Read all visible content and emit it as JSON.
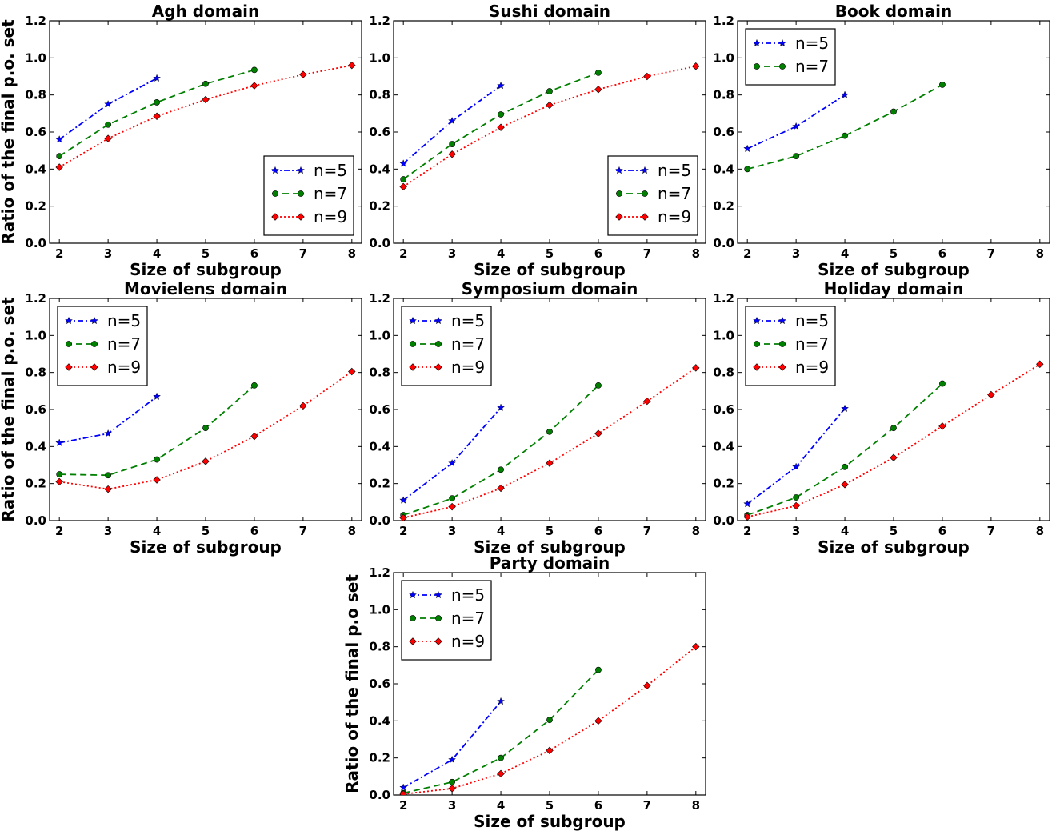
{
  "figure": {
    "xlabel": "Size of subgroup",
    "ylabel_default": "Ratio of the final p.o. set"
  },
  "series_styles": {
    "n=5": {
      "color": "#0000ff",
      "dash": "7,3,2,3",
      "marker": "star"
    },
    "n=7": {
      "color": "#007f00",
      "dash": "8,5",
      "marker": "circle"
    },
    "n=9": {
      "color": "#ff0000",
      "dash": "2,3",
      "marker": "diamond"
    }
  },
  "chart_data": [
    {
      "type": "line",
      "title": "Agh domain",
      "xlabel": "Size of subgroup",
      "ylabel": "Ratio of the final p.o. set",
      "xlim": [
        1.8,
        8.2
      ],
      "ylim": [
        0.0,
        1.2
      ],
      "xticks": [
        "2",
        "3",
        "4",
        "5",
        "6",
        "7",
        "8"
      ],
      "yticks": [
        "0.0",
        "0.2",
        "0.4",
        "0.6",
        "0.8",
        "1.0",
        "1.2"
      ],
      "legend": "lower-right",
      "series": [
        {
          "name": "n=5",
          "x": [
            2,
            3,
            4
          ],
          "y": [
            0.56,
            0.75,
            0.89
          ]
        },
        {
          "name": "n=7",
          "x": [
            2,
            3,
            4,
            5,
            6
          ],
          "y": [
            0.47,
            0.64,
            0.76,
            0.86,
            0.935
          ]
        },
        {
          "name": "n=9",
          "x": [
            2,
            3,
            4,
            5,
            6,
            7,
            8
          ],
          "y": [
            0.41,
            0.565,
            0.685,
            0.775,
            0.85,
            0.91,
            0.96
          ]
        }
      ]
    },
    {
      "type": "line",
      "title": "Sushi domain",
      "xlabel": "Size of subgroup",
      "ylabel": "",
      "xlim": [
        1.8,
        8.2
      ],
      "ylim": [
        0.0,
        1.2
      ],
      "xticks": [
        "2",
        "3",
        "4",
        "5",
        "6",
        "7",
        "8"
      ],
      "yticks": [
        "0.0",
        "0.2",
        "0.4",
        "0.6",
        "0.8",
        "1.0",
        "1.2"
      ],
      "legend": "lower-right",
      "series": [
        {
          "name": "n=5",
          "x": [
            2,
            3,
            4
          ],
          "y": [
            0.43,
            0.66,
            0.85
          ]
        },
        {
          "name": "n=7",
          "x": [
            2,
            3,
            4,
            5,
            6
          ],
          "y": [
            0.345,
            0.535,
            0.695,
            0.82,
            0.92
          ]
        },
        {
          "name": "n=9",
          "x": [
            2,
            3,
            4,
            5,
            6,
            7,
            8
          ],
          "y": [
            0.305,
            0.48,
            0.625,
            0.745,
            0.83,
            0.9,
            0.955
          ]
        }
      ]
    },
    {
      "type": "line",
      "title": "Book domain",
      "xlabel": "Size of subgroup",
      "ylabel": "",
      "xlim": [
        1.8,
        8.2
      ],
      "ylim": [
        0.0,
        1.2
      ],
      "xticks": [
        "2",
        "3",
        "4",
        "5",
        "6",
        "7",
        "8"
      ],
      "yticks": [
        "0.0",
        "0.2",
        "0.4",
        "0.6",
        "0.8",
        "1.0",
        "1.2"
      ],
      "legend": "upper-left",
      "series": [
        {
          "name": "n=5",
          "x": [
            2,
            3,
            4
          ],
          "y": [
            0.51,
            0.63,
            0.8
          ]
        },
        {
          "name": "n=7",
          "x": [
            2,
            3,
            4,
            5,
            6
          ],
          "y": [
            0.4,
            0.47,
            0.58,
            0.71,
            0.855
          ]
        }
      ]
    },
    {
      "type": "line",
      "title": "Movielens domain",
      "xlabel": "Size of subgroup",
      "ylabel": "Ratio of the final p.o. set",
      "xlim": [
        1.8,
        8.2
      ],
      "ylim": [
        0.0,
        1.2
      ],
      "xticks": [
        "2",
        "3",
        "4",
        "5",
        "6",
        "7",
        "8"
      ],
      "yticks": [
        "0.0",
        "0.2",
        "0.4",
        "0.6",
        "0.8",
        "1.0",
        "1.2"
      ],
      "legend": "upper-left",
      "series": [
        {
          "name": "n=5",
          "x": [
            2,
            3,
            4
          ],
          "y": [
            0.42,
            0.47,
            0.67
          ]
        },
        {
          "name": "n=7",
          "x": [
            2,
            3,
            4,
            5,
            6
          ],
          "y": [
            0.25,
            0.245,
            0.33,
            0.5,
            0.73
          ]
        },
        {
          "name": "n=9",
          "x": [
            2,
            3,
            4,
            5,
            6,
            7,
            8
          ],
          "y": [
            0.21,
            0.17,
            0.22,
            0.32,
            0.455,
            0.62,
            0.805
          ]
        }
      ]
    },
    {
      "type": "line",
      "title": "Symposium domain",
      "xlabel": "Size of subgroup",
      "ylabel": "",
      "xlim": [
        1.8,
        8.2
      ],
      "ylim": [
        0.0,
        1.2
      ],
      "xticks": [
        "2",
        "3",
        "4",
        "5",
        "6",
        "7",
        "8"
      ],
      "yticks": [
        "0.0",
        "0.2",
        "0.4",
        "0.6",
        "0.8",
        "1.0",
        "1.2"
      ],
      "legend": "upper-left",
      "series": [
        {
          "name": "n=5",
          "x": [
            2,
            3,
            4
          ],
          "y": [
            0.11,
            0.31,
            0.61
          ]
        },
        {
          "name": "n=7",
          "x": [
            2,
            3,
            4,
            5,
            6
          ],
          "y": [
            0.03,
            0.12,
            0.275,
            0.48,
            0.73
          ]
        },
        {
          "name": "n=9",
          "x": [
            2,
            3,
            4,
            5,
            6,
            7,
            8
          ],
          "y": [
            0.015,
            0.075,
            0.175,
            0.31,
            0.47,
            0.645,
            0.825
          ]
        }
      ]
    },
    {
      "type": "line",
      "title": "Holiday domain",
      "xlabel": "Size of subgroup",
      "ylabel": "",
      "xlim": [
        1.8,
        8.2
      ],
      "ylim": [
        0.0,
        1.2
      ],
      "xticks": [
        "2",
        "3",
        "4",
        "5",
        "6",
        "7",
        "8"
      ],
      "yticks": [
        "0.0",
        "0.2",
        "0.4",
        "0.6",
        "0.8",
        "1.0",
        "1.2"
      ],
      "legend": "upper-left",
      "series": [
        {
          "name": "n=5",
          "x": [
            2,
            3,
            4
          ],
          "y": [
            0.09,
            0.29,
            0.605
          ]
        },
        {
          "name": "n=7",
          "x": [
            2,
            3,
            4,
            5,
            6
          ],
          "y": [
            0.03,
            0.125,
            0.29,
            0.5,
            0.74
          ]
        },
        {
          "name": "n=9",
          "x": [
            2,
            3,
            4,
            5,
            6,
            7,
            8
          ],
          "y": [
            0.02,
            0.08,
            0.195,
            0.34,
            0.51,
            0.68,
            0.845
          ]
        }
      ]
    },
    {
      "type": "line",
      "title": "Party domain",
      "xlabel": "Size of subgroup",
      "ylabel": "Ratio of the final p.o set",
      "xlim": [
        1.8,
        8.2
      ],
      "ylim": [
        0.0,
        1.2
      ],
      "xticks": [
        "2",
        "3",
        "4",
        "5",
        "6",
        "7",
        "8"
      ],
      "yticks": [
        "0.0",
        "0.2",
        "0.4",
        "0.6",
        "0.8",
        "1.0",
        "1.2"
      ],
      "legend": "upper-left",
      "series": [
        {
          "name": "n=5",
          "x": [
            2,
            3,
            4
          ],
          "y": [
            0.04,
            0.19,
            0.505
          ]
        },
        {
          "name": "n=7",
          "x": [
            2,
            3,
            4,
            5,
            6
          ],
          "y": [
            0.01,
            0.07,
            0.2,
            0.405,
            0.675
          ]
        },
        {
          "name": "n=9",
          "x": [
            2,
            3,
            4,
            5,
            6,
            7,
            8
          ],
          "y": [
            0.005,
            0.035,
            0.115,
            0.24,
            0.4,
            0.59,
            0.8
          ]
        }
      ]
    }
  ]
}
